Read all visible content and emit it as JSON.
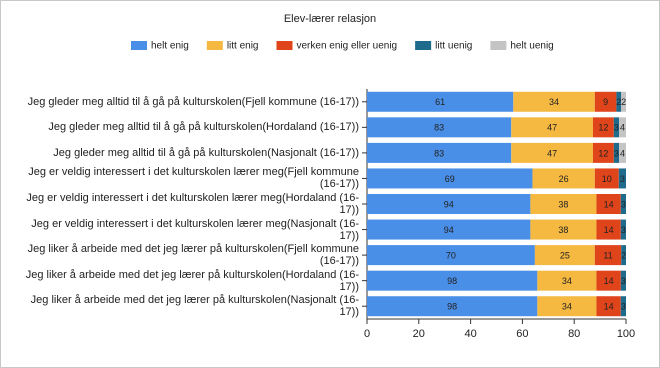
{
  "chart_data": {
    "type": "bar",
    "orientation": "horizontal",
    "stacked": "percent",
    "title": "Elev-lærer relasjon",
    "categories": [
      "Jeg gleder meg alltid til å gå på kulturskolen(Fjell kommune (16-17))",
      "Jeg gleder meg alltid til å gå på kulturskolen(Hordaland (16-17))",
      "Jeg gleder meg alltid til å gå på kulturskolen(Nasjonalt (16-17))",
      "Jeg er veldig interessert i det kulturskolen lærer meg(Fjell kommune (16-17))",
      "Jeg er veldig interessert i det kulturskolen lærer meg(Hordaland (16-17))",
      "Jeg er veldig interessert i det kulturskolen lærer meg(Nasjonalt (16-17))",
      "Jeg liker å arbeide med det jeg lærer på kulturskolen(Fjell kommune (16-17))",
      "Jeg liker å arbeide med det jeg lærer på kulturskolen(Hordaland (16-17))",
      "Jeg liker å arbeide med det jeg lærer på kulturskolen(Nasjonalt (16-17))"
    ],
    "series": [
      {
        "name": "helt enig",
        "color": "#4a8fe7",
        "values": [
          61,
          83,
          83,
          69,
          94,
          94,
          70,
          98,
          98
        ]
      },
      {
        "name": "litt enig",
        "color": "#f5b942",
        "values": [
          34,
          47,
          47,
          26,
          38,
          38,
          25,
          34,
          34
        ]
      },
      {
        "name": "verken enig eller uenig",
        "color": "#e0441b",
        "values": [
          9,
          12,
          12,
          10,
          14,
          14,
          11,
          14,
          14
        ]
      },
      {
        "name": "litt uenig",
        "color": "#1e6b8c",
        "values": [
          2,
          3,
          3,
          3,
          3,
          3,
          2,
          3,
          3
        ]
      },
      {
        "name": "helt uenig",
        "color": "#c4c4c4",
        "values": [
          2,
          4,
          4,
          0,
          0,
          0,
          0,
          0,
          0
        ]
      }
    ],
    "xlim": [
      0,
      100
    ],
    "xticks": [
      0,
      20,
      40,
      60,
      80,
      100
    ]
  }
}
